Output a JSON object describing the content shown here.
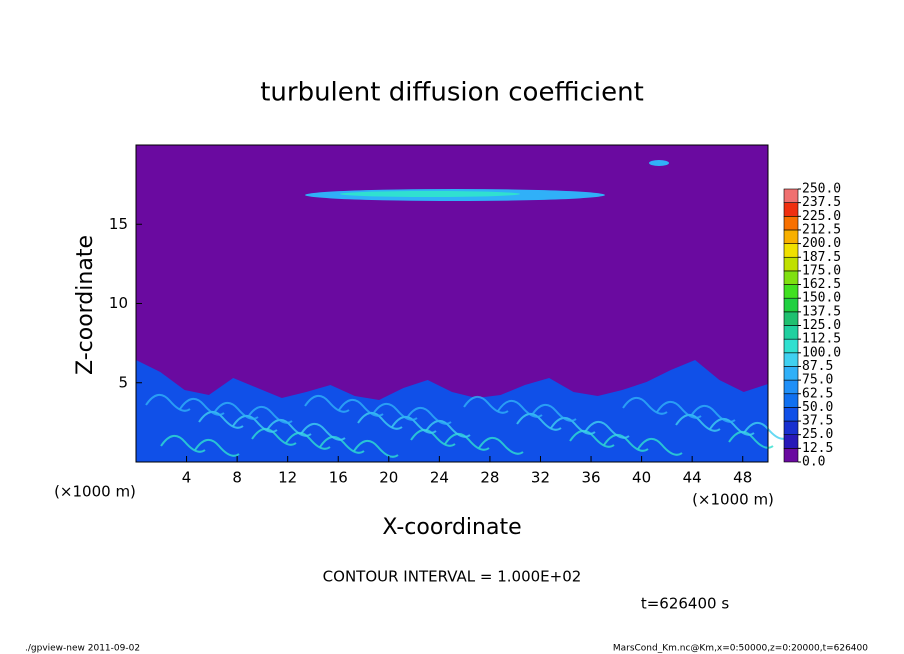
{
  "chart_data": {
    "type": "heatmap",
    "title": "turbulent diffusion coefficient",
    "x_label": "X-coordinate",
    "y_label": "Z-coordinate",
    "x_unit_label": "(×1000 m)",
    "xlim": [
      0,
      50
    ],
    "xticks": [
      4,
      8,
      12,
      16,
      20,
      24,
      28,
      32,
      36,
      40,
      44,
      48
    ],
    "ylim": [
      0,
      20
    ],
    "yticks": [
      5,
      10,
      15
    ],
    "colorbar": {
      "ticks": [
        {
          "value": 0,
          "label": "0.0"
        },
        {
          "value": 12.5,
          "label": "12.5"
        },
        {
          "value": 25,
          "label": "25.0"
        },
        {
          "value": 37.5,
          "label": "37.5"
        },
        {
          "value": 50,
          "label": "50.0"
        },
        {
          "value": 62.5,
          "label": "62.5"
        },
        {
          "value": 75,
          "label": "75.0"
        },
        {
          "value": 87.5,
          "label": "87.5"
        },
        {
          "value": 100,
          "label": "100.0"
        },
        {
          "value": 112.5,
          "label": "112.5"
        },
        {
          "value": 125,
          "label": "125.0"
        },
        {
          "value": 137.5,
          "label": "137.5"
        },
        {
          "value": 150,
          "label": "150.0"
        },
        {
          "value": 162.5,
          "label": "162.5"
        },
        {
          "value": 175,
          "label": "175.0"
        },
        {
          "value": 187.5,
          "label": "187.5"
        },
        {
          "value": 200,
          "label": "200.0"
        },
        {
          "value": 212.5,
          "label": "212.5"
        },
        {
          "value": 225,
          "label": "225.0"
        },
        {
          "value": 237.5,
          "label": "237.5"
        },
        {
          "value": 250,
          "label": "250.0"
        }
      ],
      "colors": [
        "#6a0aa0",
        "#2818b8",
        "#1830d0",
        "#1050e8",
        "#1070f0",
        "#2090f8",
        "#30b0f8",
        "#40d0f0",
        "#30e0d0",
        "#20d0a0",
        "#20c070",
        "#20d040",
        "#40e020",
        "#80e010",
        "#c0e000",
        "#f0e000",
        "#f8b000",
        "#f87000",
        "#f03010",
        "#f07070"
      ]
    },
    "contour_interval": "CONTOUR INTERVAL = 1.000E+02",
    "time_label": "t=626400 s",
    "footer_left": "./gpview-new   2011-09-02",
    "footer_right": "MarsCond_Km.nc@Km,x=0:50000,z=0:20000,t=626400"
  }
}
